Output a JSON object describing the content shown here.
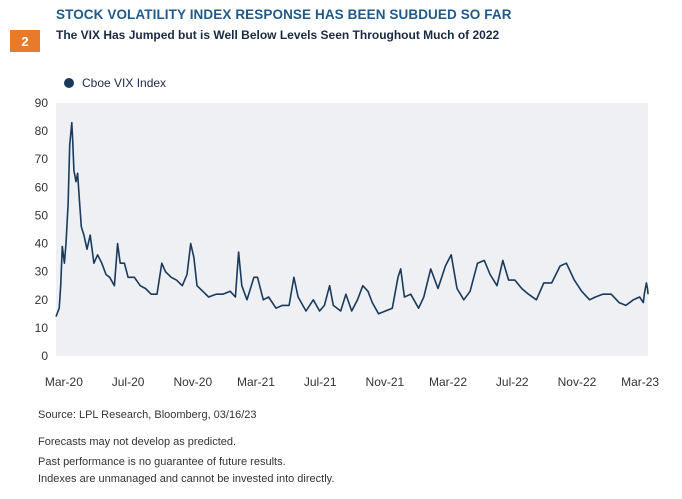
{
  "badge": "2",
  "title": "STOCK VOLATILITY INDEX RESPONSE HAS BEEN SUBDUED SO FAR",
  "subtitle": "The VIX Has Jumped but is Well Below Levels Seen Throughout Much of 2022",
  "colors": {
    "accent": "#e87a2c",
    "title": "#1f5a8a",
    "series": "#1a3a5c",
    "plot_bg": "#eef0f3"
  },
  "footer": {
    "source": "Source: LPL Research,  Bloomberg,  03/16/23",
    "disclaimer_1": "Forecasts may not develop as predicted.",
    "disclaimer_2": "Past performance is no guarantee of future results.",
    "disclaimer_3": "Indexes are unmanaged and cannot be invested into directly."
  },
  "chart_data": {
    "type": "line",
    "legend_position": "top-left",
    "grid": false,
    "ylim": [
      0,
      90
    ],
    "y_ticks": [
      0,
      10,
      20,
      30,
      40,
      50,
      60,
      70,
      80,
      90
    ],
    "x_range": [
      "2020-02-15",
      "2023-03-16"
    ],
    "x_tick_labels": [
      {
        "label": "Mar-20",
        "date": "2020-03-01"
      },
      {
        "label": "Jul-20",
        "date": "2020-07-01"
      },
      {
        "label": "Nov-20",
        "date": "2020-11-01"
      },
      {
        "label": "Mar-21",
        "date": "2021-03-01"
      },
      {
        "label": "Jul-21",
        "date": "2021-07-01"
      },
      {
        "label": "Nov-21",
        "date": "2021-11-01"
      },
      {
        "label": "Mar-22",
        "date": "2022-03-01"
      },
      {
        "label": "Jul-22",
        "date": "2022-07-01"
      },
      {
        "label": "Nov-22",
        "date": "2022-11-01"
      },
      {
        "label": "Mar-23",
        "date": "2023-03-01"
      }
    ],
    "series": [
      {
        "name": "Cboe VIX Index",
        "points": [
          [
            "2020-02-15",
            14
          ],
          [
            "2020-02-21",
            17
          ],
          [
            "2020-02-24",
            25
          ],
          [
            "2020-02-27",
            39
          ],
          [
            "2020-03-02",
            33
          ],
          [
            "2020-03-05",
            40
          ],
          [
            "2020-03-09",
            54
          ],
          [
            "2020-03-12",
            75
          ],
          [
            "2020-03-16",
            83
          ],
          [
            "2020-03-18",
            76
          ],
          [
            "2020-03-20",
            66
          ],
          [
            "2020-03-24",
            62
          ],
          [
            "2020-03-27",
            65
          ],
          [
            "2020-03-31",
            54
          ],
          [
            "2020-04-03",
            46
          ],
          [
            "2020-04-08",
            43
          ],
          [
            "2020-04-14",
            38
          ],
          [
            "2020-04-20",
            43
          ],
          [
            "2020-04-27",
            33
          ],
          [
            "2020-05-04",
            36
          ],
          [
            "2020-05-12",
            33
          ],
          [
            "2020-05-20",
            29
          ],
          [
            "2020-05-27",
            28
          ],
          [
            "2020-06-05",
            25
          ],
          [
            "2020-06-11",
            40
          ],
          [
            "2020-06-16",
            33
          ],
          [
            "2020-06-24",
            33
          ],
          [
            "2020-07-01",
            28
          ],
          [
            "2020-07-13",
            28
          ],
          [
            "2020-07-24",
            25
          ],
          [
            "2020-08-03",
            24
          ],
          [
            "2020-08-14",
            22
          ],
          [
            "2020-08-25",
            22
          ],
          [
            "2020-09-03",
            33
          ],
          [
            "2020-09-10",
            30
          ],
          [
            "2020-09-21",
            28
          ],
          [
            "2020-10-01",
            27
          ],
          [
            "2020-10-12",
            25
          ],
          [
            "2020-10-21",
            29
          ],
          [
            "2020-10-28",
            40
          ],
          [
            "2020-11-03",
            35
          ],
          [
            "2020-11-09",
            25
          ],
          [
            "2020-11-20",
            23
          ],
          [
            "2020-12-01",
            21
          ],
          [
            "2020-12-15",
            22
          ],
          [
            "2020-12-28",
            22
          ],
          [
            "2021-01-11",
            23
          ],
          [
            "2021-01-21",
            21
          ],
          [
            "2021-01-27",
            37
          ],
          [
            "2021-02-02",
            25
          ],
          [
            "2021-02-12",
            20
          ],
          [
            "2021-02-25",
            28
          ],
          [
            "2021-03-04",
            28
          ],
          [
            "2021-03-15",
            20
          ],
          [
            "2021-03-25",
            21
          ],
          [
            "2021-04-08",
            17
          ],
          [
            "2021-04-20",
            18
          ],
          [
            "2021-05-03",
            18
          ],
          [
            "2021-05-12",
            28
          ],
          [
            "2021-05-20",
            21
          ],
          [
            "2021-06-04",
            16
          ],
          [
            "2021-06-18",
            20
          ],
          [
            "2021-06-30",
            16
          ],
          [
            "2021-07-09",
            18
          ],
          [
            "2021-07-19",
            25
          ],
          [
            "2021-07-26",
            18
          ],
          [
            "2021-08-09",
            16
          ],
          [
            "2021-08-19",
            22
          ],
          [
            "2021-08-30",
            16
          ],
          [
            "2021-09-10",
            20
          ],
          [
            "2021-09-20",
            25
          ],
          [
            "2021-09-30",
            23
          ],
          [
            "2021-10-08",
            19
          ],
          [
            "2021-10-20",
            15
          ],
          [
            "2021-11-02",
            16
          ],
          [
            "2021-11-15",
            17
          ],
          [
            "2021-11-26",
            28
          ],
          [
            "2021-12-01",
            31
          ],
          [
            "2021-12-08",
            21
          ],
          [
            "2021-12-20",
            22
          ],
          [
            "2022-01-04",
            17
          ],
          [
            "2022-01-14",
            21
          ],
          [
            "2022-01-27",
            31
          ],
          [
            "2022-02-10",
            24
          ],
          [
            "2022-02-24",
            32
          ],
          [
            "2022-03-07",
            36
          ],
          [
            "2022-03-18",
            24
          ],
          [
            "2022-03-31",
            20
          ],
          [
            "2022-04-12",
            23
          ],
          [
            "2022-04-26",
            33
          ],
          [
            "2022-05-09",
            34
          ],
          [
            "2022-05-20",
            29
          ],
          [
            "2022-06-02",
            25
          ],
          [
            "2022-06-13",
            34
          ],
          [
            "2022-06-24",
            27
          ],
          [
            "2022-07-06",
            27
          ],
          [
            "2022-07-19",
            24
          ],
          [
            "2022-08-01",
            22
          ],
          [
            "2022-08-16",
            20
          ],
          [
            "2022-08-30",
            26
          ],
          [
            "2022-09-14",
            26
          ],
          [
            "2022-09-30",
            32
          ],
          [
            "2022-10-12",
            33
          ],
          [
            "2022-10-27",
            27
          ],
          [
            "2022-11-10",
            23
          ],
          [
            "2022-11-25",
            20
          ],
          [
            "2022-12-06",
            21
          ],
          [
            "2022-12-20",
            22
          ],
          [
            "2023-01-05",
            22
          ],
          [
            "2023-01-20",
            19
          ],
          [
            "2023-02-02",
            18
          ],
          [
            "2023-02-16",
            20
          ],
          [
            "2023-02-28",
            21
          ],
          [
            "2023-03-07",
            19
          ],
          [
            "2023-03-09",
            22
          ],
          [
            "2023-03-13",
            26
          ],
          [
            "2023-03-15",
            24
          ],
          [
            "2023-03-16",
            22
          ]
        ]
      }
    ]
  }
}
